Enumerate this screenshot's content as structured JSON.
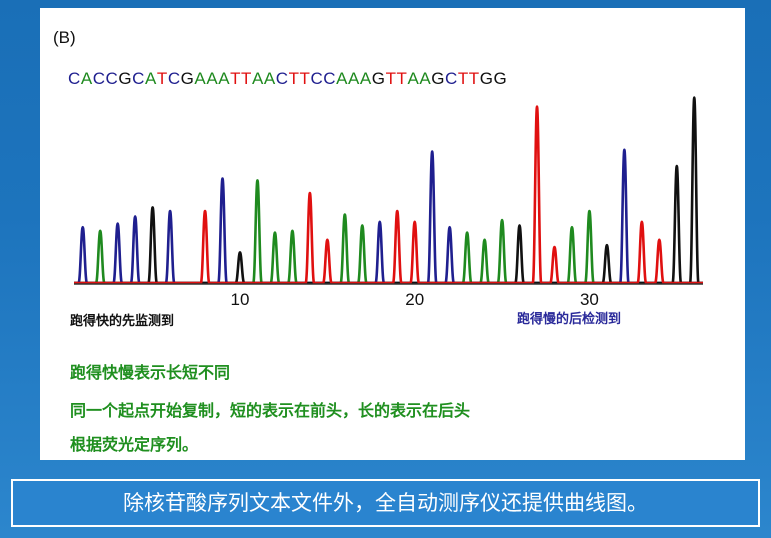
{
  "panel_label": "(B)",
  "sequence": "CACCGCATCGAAATTAACTTCCAAAGTTAAGCTTGG",
  "base_colors": {
    "A": "#1f8a1f",
    "C": "#1f1f8f",
    "G": "#111111",
    "T": "#e01010"
  },
  "notes": {
    "fast": "跑得快的先监测到",
    "slow": "跑得慢的后检测到"
  },
  "description": [
    "跑得快慢表示长短不同",
    "同一个起点开始复制，短的表示在前头，长的表示在后头",
    "根据荧光定序列。"
  ],
  "caption": "除核苷酸序列文本文件外，全自动测序仪还提供曲线图。",
  "chart_data": {
    "type": "line",
    "title": "",
    "xlabel": "",
    "ylabel": "",
    "x_ticks": [
      10,
      20,
      30
    ],
    "x_range": [
      0.5,
      36.5
    ],
    "ylim": [
      0,
      100
    ],
    "grid": false,
    "peaks": [
      {
        "pos": 1,
        "base": "C",
        "height": 31
      },
      {
        "pos": 2,
        "base": "A",
        "height": 29
      },
      {
        "pos": 3,
        "base": "C",
        "height": 33
      },
      {
        "pos": 4,
        "base": "C",
        "height": 37
      },
      {
        "pos": 5,
        "base": "G",
        "height": 42
      },
      {
        "pos": 6,
        "base": "C",
        "height": 40
      },
      {
        "pos": 7,
        "base": "A",
        "height": 0
      },
      {
        "pos": 8,
        "base": "T",
        "height": 40
      },
      {
        "pos": 9,
        "base": "C",
        "height": 58
      },
      {
        "pos": 10,
        "base": "G",
        "height": 17
      },
      {
        "pos": 11,
        "base": "A",
        "height": 57
      },
      {
        "pos": 12,
        "base": "A",
        "height": 28
      },
      {
        "pos": 13,
        "base": "A",
        "height": 29
      },
      {
        "pos": 14,
        "base": "T",
        "height": 50
      },
      {
        "pos": 15,
        "base": "T",
        "height": 24
      },
      {
        "pos": 16,
        "base": "A",
        "height": 38
      },
      {
        "pos": 17,
        "base": "A",
        "height": 32
      },
      {
        "pos": 18,
        "base": "C",
        "height": 34
      },
      {
        "pos": 19,
        "base": "T",
        "height": 40
      },
      {
        "pos": 20,
        "base": "T",
        "height": 34
      },
      {
        "pos": 21,
        "base": "C",
        "height": 73
      },
      {
        "pos": 22,
        "base": "C",
        "height": 31
      },
      {
        "pos": 23,
        "base": "A",
        "height": 28
      },
      {
        "pos": 24,
        "base": "A",
        "height": 24
      },
      {
        "pos": 25,
        "base": "A",
        "height": 35
      },
      {
        "pos": 26,
        "base": "G",
        "height": 32
      },
      {
        "pos": 27,
        "base": "T",
        "height": 98
      },
      {
        "pos": 28,
        "base": "T",
        "height": 20
      },
      {
        "pos": 29,
        "base": "A",
        "height": 31
      },
      {
        "pos": 30,
        "base": "A",
        "height": 40
      },
      {
        "pos": 31,
        "base": "G",
        "height": 21
      },
      {
        "pos": 32,
        "base": "C",
        "height": 74
      },
      {
        "pos": 33,
        "base": "T",
        "height": 34
      },
      {
        "pos": 34,
        "base": "T",
        "height": 24
      },
      {
        "pos": 35,
        "base": "G",
        "height": 65
      },
      {
        "pos": 36,
        "base": "G",
        "height": 103
      }
    ]
  }
}
